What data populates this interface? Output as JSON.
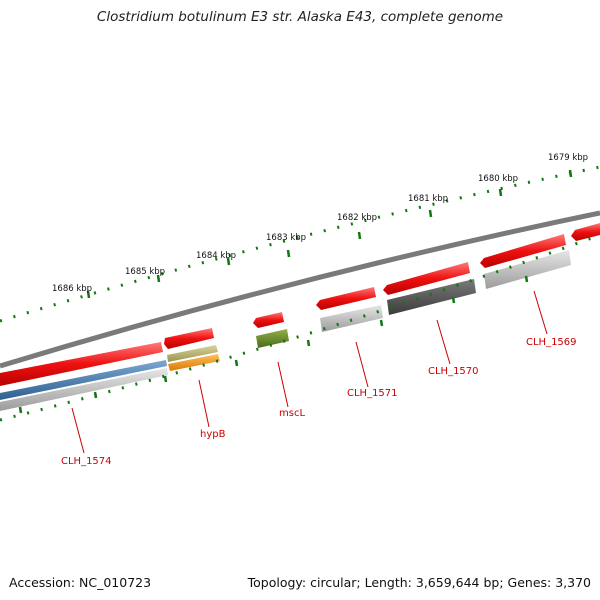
{
  "title": "Clostridium botulinum E3 str. Alaska E43, complete genome",
  "footer": {
    "accession": "Accession: NC_010723",
    "topology": "Topology: circular; Length: 3,659,644 bp; Genes: 3,370"
  },
  "ruler": {
    "ticks": [
      {
        "label": "1686 kbp"
      },
      {
        "label": "1685 kbp"
      },
      {
        "label": "1684 kbp"
      },
      {
        "label": "1683 kbp"
      },
      {
        "label": "1682 kbp"
      },
      {
        "label": "1681 kbp"
      },
      {
        "label": "1680 kbp"
      },
      {
        "label": "1679 kbp"
      }
    ]
  },
  "genes": [
    {
      "label": "CLH_1574"
    },
    {
      "label": "hypB"
    },
    {
      "label": "mscL"
    },
    {
      "label": "CLH_1571"
    },
    {
      "label": "CLH_1570"
    },
    {
      "label": "CLH_1569"
    }
  ],
  "colors": {
    "gene_red": "#ee1111",
    "backbone": "#808080",
    "ruler_green": "#117711",
    "label_red": "#cc0000",
    "blue": "#4a7fb0",
    "olive": "#b8b46c",
    "orange": "#f29620",
    "green": "#6b8e23",
    "dark_gray": "#5a5a5a",
    "light_gray": "#c0c0c0"
  }
}
